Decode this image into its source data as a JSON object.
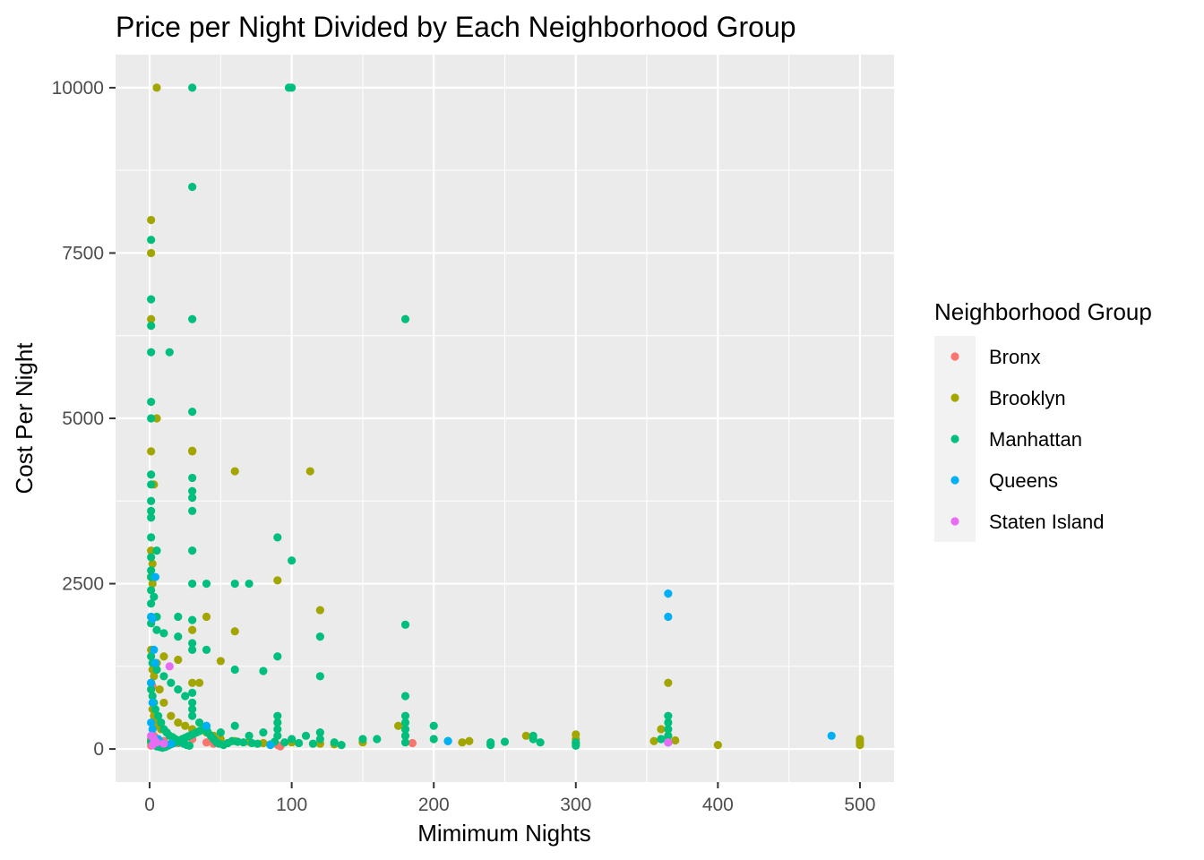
{
  "chart_data": {
    "type": "scatter",
    "title": "Price per Night Divided by Each Neighborhood Group",
    "xlabel": "Mimimum Nights",
    "ylabel": "Cost Per Night",
    "xlim": [
      -24,
      524
    ],
    "ylim": [
      -500,
      10500
    ],
    "xticks": [
      0,
      100,
      200,
      300,
      400,
      500
    ],
    "xtick_labels": [
      "0",
      "100",
      "200",
      "300",
      "400",
      "500"
    ],
    "yticks": [
      0,
      2500,
      5000,
      7500,
      10000
    ],
    "ytick_labels": [
      "0",
      "2500",
      "5000",
      "7500",
      "10000"
    ],
    "grid": true,
    "legend": {
      "title": "Neighborhood Group",
      "position": "right"
    },
    "series": [
      {
        "name": "Bronx",
        "color": "#F8766D",
        "points": [
          [
            1,
            1000
          ],
          [
            2,
            950
          ],
          [
            4,
            100
          ],
          [
            5,
            80
          ],
          [
            10,
            120
          ],
          [
            20,
            90
          ],
          [
            30,
            150
          ],
          [
            40,
            100
          ],
          [
            45,
            80
          ],
          [
            92,
            40
          ],
          [
            90,
            60
          ],
          [
            185,
            90
          ],
          [
            1,
            50
          ],
          [
            3,
            200
          ],
          [
            6,
            60
          ],
          [
            15,
            70
          ]
        ]
      },
      {
        "name": "Brooklyn",
        "color": "#A3A500",
        "points": [
          [
            5,
            10000
          ],
          [
            1,
            8000
          ],
          [
            1,
            7500
          ],
          [
            1,
            6500
          ],
          [
            5,
            5000
          ],
          [
            1,
            4500
          ],
          [
            3,
            4000
          ],
          [
            60,
            4200
          ],
          [
            113,
            4200
          ],
          [
            1,
            2600
          ],
          [
            2,
            2500
          ],
          [
            1,
            2000
          ],
          [
            40,
            2000
          ],
          [
            90,
            2550
          ],
          [
            120,
            2100
          ],
          [
            60,
            1780
          ],
          [
            30,
            1800
          ],
          [
            2,
            1200
          ],
          [
            3,
            1100
          ],
          [
            10,
            1400
          ],
          [
            20,
            1350
          ],
          [
            50,
            1330
          ],
          [
            30,
            1000
          ],
          [
            35,
            1000
          ],
          [
            365,
            1000
          ],
          [
            30,
            4500
          ],
          [
            30,
            4510
          ],
          [
            1,
            3000
          ],
          [
            2,
            2800
          ],
          [
            1,
            1500
          ],
          [
            5,
            1300
          ],
          [
            7,
            900
          ],
          [
            10,
            700
          ],
          [
            15,
            500
          ],
          [
            20,
            400
          ],
          [
            25,
            350
          ],
          [
            30,
            300
          ],
          [
            40,
            250
          ],
          [
            45,
            200
          ],
          [
            50,
            150
          ],
          [
            60,
            120
          ],
          [
            70,
            110
          ],
          [
            80,
            90
          ],
          [
            100,
            100
          ],
          [
            120,
            80
          ],
          [
            130,
            70
          ],
          [
            180,
            300
          ],
          [
            175,
            350
          ],
          [
            180,
            200
          ],
          [
            265,
            200
          ],
          [
            300,
            220
          ],
          [
            300,
            150
          ],
          [
            300,
            80
          ],
          [
            355,
            120
          ],
          [
            360,
            300
          ],
          [
            365,
            200
          ],
          [
            370,
            130
          ],
          [
            400,
            60
          ],
          [
            500,
            150
          ],
          [
            500,
            100
          ],
          [
            500,
            60
          ],
          [
            225,
            120
          ],
          [
            220,
            100
          ],
          [
            150,
            100
          ],
          [
            2,
            600
          ],
          [
            3,
            500
          ],
          [
            4,
            450
          ],
          [
            6,
            350
          ],
          [
            8,
            300
          ],
          [
            12,
            250
          ],
          [
            1,
            150
          ],
          [
            1,
            100
          ],
          [
            2,
            80
          ],
          [
            3,
            70
          ]
        ]
      },
      {
        "name": "Manhattan",
        "color": "#00BF7D",
        "points": [
          [
            30,
            10000
          ],
          [
            98,
            10000
          ],
          [
            100,
            10000
          ],
          [
            30,
            8500
          ],
          [
            1,
            7700
          ],
          [
            1,
            6800
          ],
          [
            1,
            6400
          ],
          [
            30,
            6500
          ],
          [
            180,
            6500
          ],
          [
            1,
            6000
          ],
          [
            14,
            6000
          ],
          [
            1,
            5250
          ],
          [
            1,
            5000
          ],
          [
            30,
            5100
          ],
          [
            1,
            4150
          ],
          [
            1,
            4000
          ],
          [
            30,
            4100
          ],
          [
            1,
            3750
          ],
          [
            1,
            3600
          ],
          [
            30,
            3900
          ],
          [
            30,
            3800
          ],
          [
            30,
            3600
          ],
          [
            1,
            3500
          ],
          [
            1,
            3200
          ],
          [
            5,
            3000
          ],
          [
            30,
            3000
          ],
          [
            1,
            2900
          ],
          [
            1,
            2700
          ],
          [
            1,
            2600
          ],
          [
            30,
            2500
          ],
          [
            40,
            2500
          ],
          [
            60,
            2500
          ],
          [
            70,
            2500
          ],
          [
            90,
            3200
          ],
          [
            100,
            2850
          ],
          [
            1,
            2400
          ],
          [
            3,
            2300
          ],
          [
            1,
            2200
          ],
          [
            5,
            2000
          ],
          [
            20,
            2000
          ],
          [
            30,
            1950
          ],
          [
            1,
            1900
          ],
          [
            5,
            1800
          ],
          [
            10,
            1750
          ],
          [
            20,
            1700
          ],
          [
            30,
            1600
          ],
          [
            30,
            1500
          ],
          [
            40,
            1500
          ],
          [
            60,
            1200
          ],
          [
            80,
            1180
          ],
          [
            90,
            1400
          ],
          [
            120,
            1700
          ],
          [
            120,
            1100
          ],
          [
            180,
            1880
          ],
          [
            1,
            1400
          ],
          [
            2,
            1300
          ],
          [
            5,
            1200
          ],
          [
            10,
            1100
          ],
          [
            15,
            1000
          ],
          [
            20,
            900
          ],
          [
            25,
            800
          ],
          [
            30,
            850
          ],
          [
            30,
            700
          ],
          [
            30,
            600
          ],
          [
            30,
            500
          ],
          [
            35,
            400
          ],
          [
            40,
            300
          ],
          [
            50,
            250
          ],
          [
            60,
            350
          ],
          [
            70,
            200
          ],
          [
            80,
            250
          ],
          [
            90,
            500
          ],
          [
            90,
            400
          ],
          [
            90,
            300
          ],
          [
            90,
            200
          ],
          [
            100,
            150
          ],
          [
            110,
            200
          ],
          [
            120,
            250
          ],
          [
            120,
            150
          ],
          [
            130,
            100
          ],
          [
            135,
            60
          ],
          [
            150,
            150
          ],
          [
            160,
            150
          ],
          [
            180,
            800
          ],
          [
            180,
            500
          ],
          [
            180,
            400
          ],
          [
            180,
            300
          ],
          [
            180,
            200
          ],
          [
            180,
            100
          ],
          [
            200,
            350
          ],
          [
            200,
            150
          ],
          [
            210,
            120
          ],
          [
            240,
            60
          ],
          [
            240,
            100
          ],
          [
            250,
            110
          ],
          [
            270,
            200
          ],
          [
            270,
            150
          ],
          [
            275,
            100
          ],
          [
            300,
            100
          ],
          [
            300,
            50
          ],
          [
            365,
            500
          ],
          [
            365,
            400
          ],
          [
            365,
            300
          ],
          [
            365,
            200
          ],
          [
            365,
            100
          ],
          [
            360,
            150
          ],
          [
            1,
            1000
          ],
          [
            1,
            900
          ],
          [
            2,
            800
          ],
          [
            3,
            700
          ],
          [
            4,
            600
          ],
          [
            6,
            500
          ],
          [
            8,
            400
          ],
          [
            10,
            300
          ],
          [
            12,
            250
          ],
          [
            14,
            200
          ],
          [
            16,
            180
          ],
          [
            18,
            150
          ],
          [
            20,
            120
          ],
          [
            22,
            100
          ],
          [
            24,
            80
          ],
          [
            26,
            60
          ],
          [
            28,
            50
          ],
          [
            1,
            120
          ],
          [
            2,
            90
          ],
          [
            3,
            60
          ],
          [
            5,
            40
          ],
          [
            7,
            30
          ],
          [
            9,
            20
          ],
          [
            11,
            30
          ],
          [
            13,
            50
          ],
          [
            15,
            70
          ],
          [
            17,
            90
          ],
          [
            19,
            110
          ],
          [
            21,
            130
          ],
          [
            23,
            150
          ],
          [
            25,
            170
          ],
          [
            27,
            190
          ],
          [
            29,
            210
          ],
          [
            31,
            230
          ],
          [
            33,
            250
          ],
          [
            35,
            270
          ],
          [
            37,
            290
          ],
          [
            39,
            310
          ],
          [
            41,
            250
          ],
          [
            43,
            200
          ],
          [
            45,
            150
          ],
          [
            47,
            100
          ],
          [
            49,
            80
          ],
          [
            52,
            60
          ],
          [
            55,
            90
          ],
          [
            58,
            120
          ],
          [
            62,
            110
          ],
          [
            66,
            100
          ],
          [
            72,
            90
          ],
          [
            76,
            80
          ],
          [
            85,
            70
          ],
          [
            88,
            110
          ],
          [
            95,
            100
          ],
          [
            105,
            90
          ],
          [
            115,
            80
          ]
        ]
      },
      {
        "name": "Queens",
        "color": "#00B0F6",
        "points": [
          [
            4,
            2600
          ],
          [
            1,
            2000
          ],
          [
            2,
            1970
          ],
          [
            3,
            1500
          ],
          [
            4,
            1300
          ],
          [
            1,
            1000
          ],
          [
            2,
            700
          ],
          [
            365,
            2350
          ],
          [
            365,
            2000
          ],
          [
            480,
            200
          ],
          [
            365,
            100
          ],
          [
            210,
            120
          ],
          [
            85,
            60
          ],
          [
            40,
            350
          ],
          [
            15,
            80
          ],
          [
            6,
            150
          ],
          [
            8,
            100
          ],
          [
            2,
            300
          ],
          [
            1,
            400
          ]
        ]
      },
      {
        "name": "Staten Island",
        "color": "#E76BF3",
        "points": [
          [
            14,
            1250
          ],
          [
            365,
            100
          ],
          [
            1,
            200
          ],
          [
            3,
            150
          ],
          [
            5,
            100
          ],
          [
            2,
            60
          ],
          [
            10,
            80
          ]
        ]
      }
    ]
  }
}
